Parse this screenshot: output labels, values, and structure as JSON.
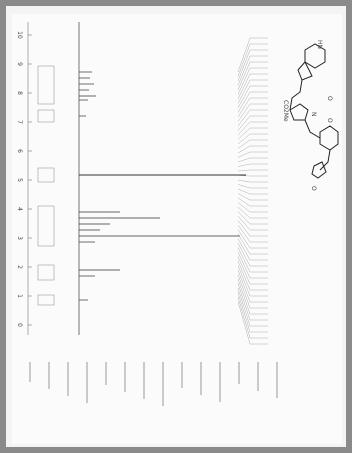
{
  "spectrum": {
    "axis_labels": [
      "10",
      "9",
      "8",
      "7",
      "6",
      "5",
      "4",
      "3",
      "2",
      "1",
      "0"
    ]
  },
  "structure": {
    "labels": [
      "HN",
      "O",
      "CO2Me",
      "N",
      "O",
      "O"
    ]
  }
}
